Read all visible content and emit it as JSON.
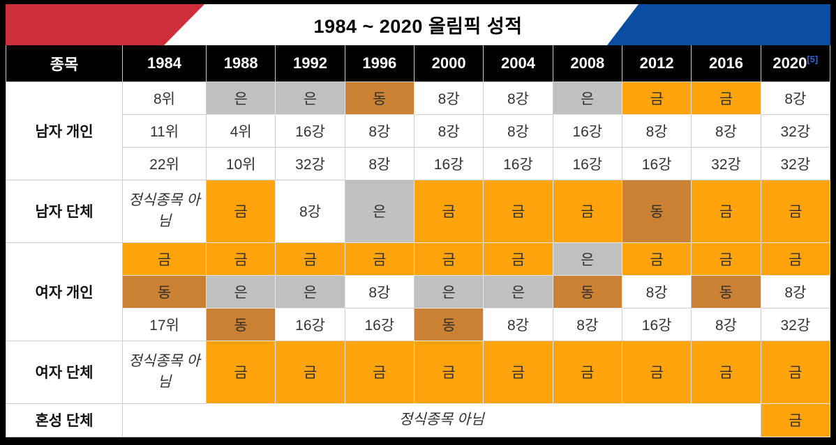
{
  "banner": {
    "title": "1984 ~ 2020 올림픽 성적",
    "red": "#CD2E3A",
    "blue": "#0B4DA1"
  },
  "header": {
    "category_label": "종목",
    "years": [
      "1984",
      "1988",
      "1992",
      "1996",
      "2000",
      "2004",
      "2008",
      "2012",
      "2016"
    ],
    "last_year": "2020",
    "last_year_footnote": "[5]",
    "footnote_color": "#3366CC"
  },
  "medal_colors": {
    "금": {
      "name": "gold",
      "color": "#FFA40C"
    },
    "은": {
      "name": "silver",
      "color": "#C0C0C0"
    },
    "동": {
      "name": "bronze",
      "color": "#CB8133"
    }
  },
  "groups": [
    {
      "label": "남자 개인",
      "rows": [
        [
          "8위",
          "은",
          "은",
          "동",
          "8강",
          "8강",
          "은",
          "금",
          "금",
          "8강"
        ],
        [
          "11위",
          "4위",
          "16강",
          "8강",
          "8강",
          "8강",
          "16강",
          "8강",
          "8강",
          "32강"
        ],
        [
          "22위",
          "10위",
          "32강",
          "8강",
          "16강",
          "16강",
          "16강",
          "16강",
          "32강",
          "32강"
        ]
      ]
    },
    {
      "label": "남자 단체",
      "tall": true,
      "rows": [
        [
          "정식종목 아님",
          "금",
          "8강",
          "은",
          "금",
          "금",
          "금",
          "동",
          "금",
          "금"
        ]
      ]
    },
    {
      "label": "여자 개인",
      "rows": [
        [
          "금",
          "금",
          "금",
          "금",
          "금",
          "금",
          "은",
          "금",
          "금",
          "금"
        ],
        [
          "동",
          "은",
          "은",
          "8강",
          "은",
          "은",
          "동",
          "8강",
          "동",
          "8강"
        ],
        [
          "17위",
          "동",
          "16강",
          "16강",
          "동",
          "8강",
          "8강",
          "16강",
          "8강",
          "32강"
        ]
      ]
    },
    {
      "label": "여자 단체",
      "tall": true,
      "rows": [
        [
          "정식종목 아님",
          "금",
          "금",
          "금",
          "금",
          "금",
          "금",
          "금",
          "금",
          "금"
        ]
      ]
    },
    {
      "label": "혼성 단체",
      "last": true,
      "rows": [
        [
          {
            "text": "정식종목 아님",
            "colspan": 9
          },
          "금"
        ]
      ]
    }
  ]
}
